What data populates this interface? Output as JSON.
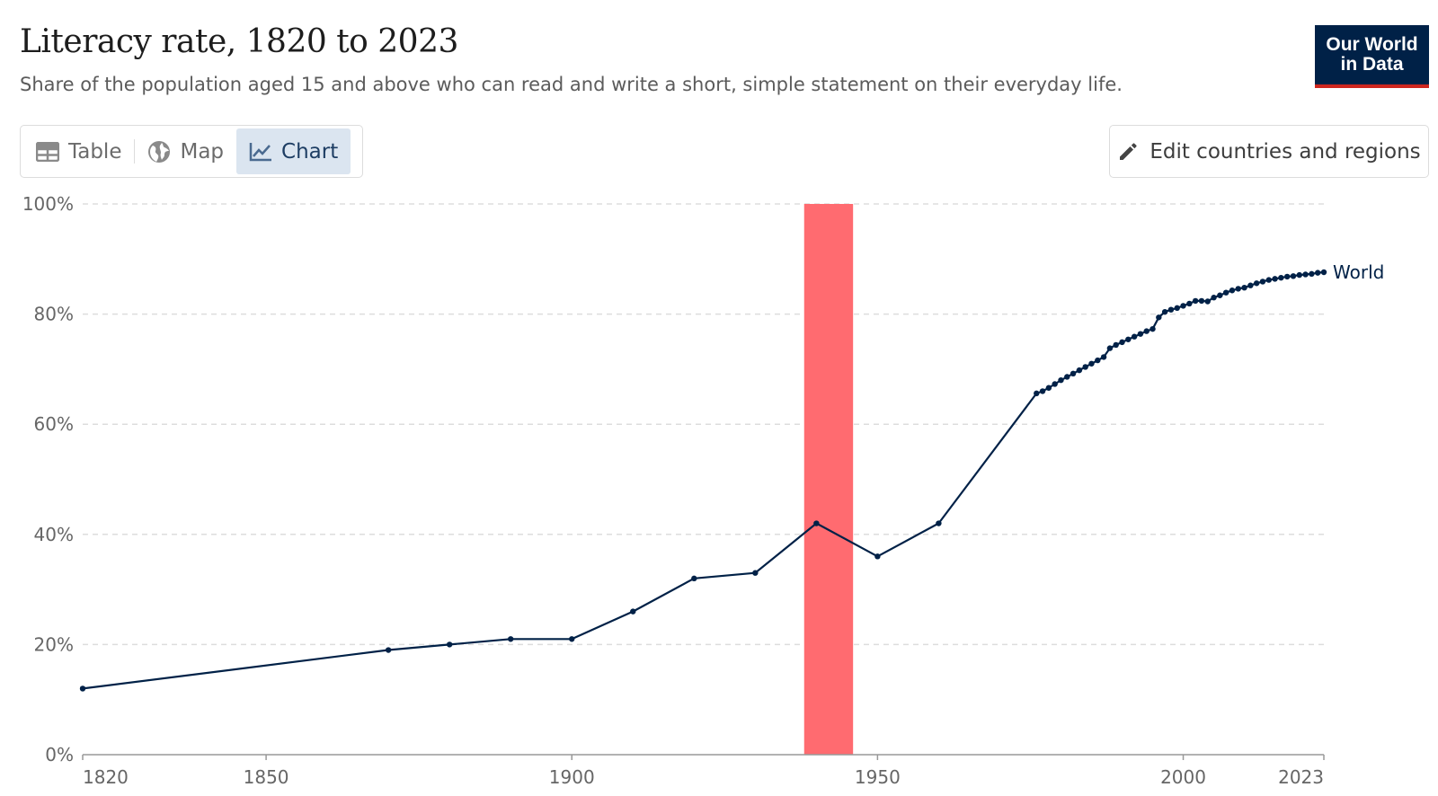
{
  "header": {
    "title": "Literacy rate, 1820 to 2023",
    "subtitle": "Share of the population aged 15 and above who can read and write a short, simple statement on their everyday life."
  },
  "logo": {
    "line1": "Our World",
    "line2": "in Data"
  },
  "tabs": [
    {
      "label": "Table",
      "icon": "table-icon",
      "active": false
    },
    {
      "label": "Map",
      "icon": "globe-icon",
      "active": false
    },
    {
      "label": "Chart",
      "icon": "line-chart-icon",
      "active": true
    }
  ],
  "edit_button": {
    "label": "Edit countries and regions",
    "icon": "pencil-icon"
  },
  "colors": {
    "series": "#002147",
    "highlight": "#ff6b70",
    "accent": "#ce261e"
  },
  "chart_data": {
    "type": "line",
    "title": "Literacy rate, 1820 to 2023",
    "xlim": [
      1820,
      2023
    ],
    "ylim": [
      0,
      100
    ],
    "x_ticks": [
      1820,
      1850,
      1900,
      1950,
      2000,
      2023
    ],
    "y_ticks": [
      0,
      20,
      40,
      60,
      80,
      100
    ],
    "y_tick_suffix": "%",
    "grid": true,
    "highlight_band": {
      "x_start": 1938,
      "x_end": 1946
    },
    "series": [
      {
        "name": "World",
        "x": [
          1820,
          1870,
          1880,
          1890,
          1900,
          1910,
          1920,
          1930,
          1940,
          1950,
          1960,
          1976,
          1977,
          1978,
          1979,
          1980,
          1981,
          1982,
          1983,
          1984,
          1985,
          1986,
          1987,
          1988,
          1989,
          1990,
          1991,
          1992,
          1993,
          1994,
          1995,
          1996,
          1997,
          1998,
          1999,
          2000,
          2001,
          2002,
          2003,
          2004,
          2005,
          2006,
          2007,
          2008,
          2009,
          2010,
          2011,
          2012,
          2013,
          2014,
          2015,
          2016,
          2017,
          2018,
          2019,
          2020,
          2021,
          2022,
          2023
        ],
        "y": [
          12,
          19,
          20,
          21,
          21,
          26,
          32,
          33,
          42,
          36,
          42,
          65.6,
          66,
          66.6,
          67.3,
          68,
          68.6,
          69.2,
          69.8,
          70.4,
          71,
          71.6,
          72.2,
          73.8,
          74.4,
          74.9,
          75.4,
          75.9,
          76.4,
          76.9,
          77.3,
          79.4,
          80.4,
          80.8,
          81.1,
          81.5,
          81.9,
          82.4,
          82.4,
          82.3,
          83,
          83.4,
          83.9,
          84.3,
          84.6,
          84.8,
          85.2,
          85.6,
          85.9,
          86.2,
          86.4,
          86.6,
          86.8,
          86.9,
          87.1,
          87.2,
          87.3,
          87.5,
          87.6
        ]
      }
    ]
  }
}
